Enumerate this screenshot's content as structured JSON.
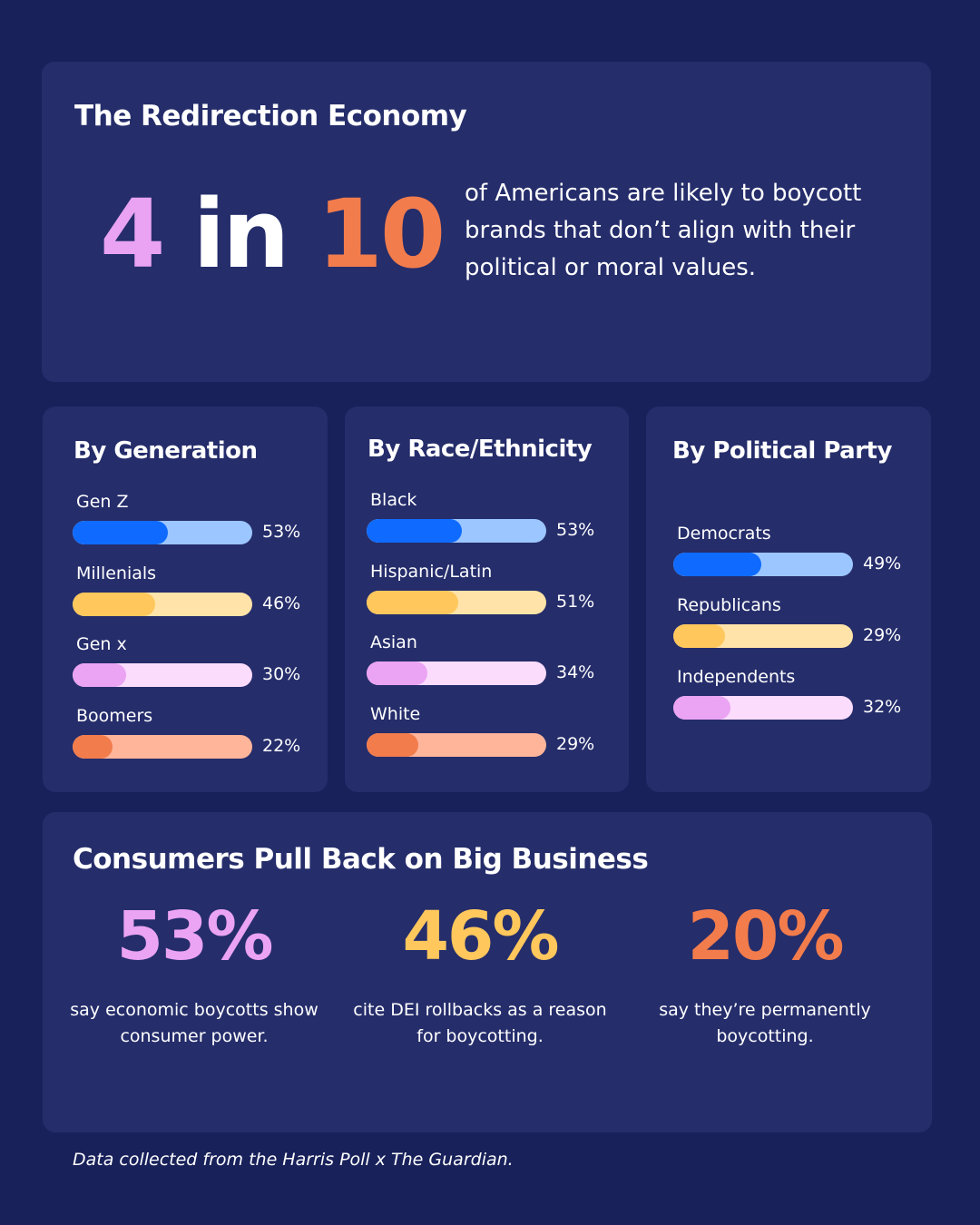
{
  "hero": {
    "title": "The Redirection Economy",
    "stat_part1": "4",
    "stat_part2": " in ",
    "stat_part3": "10",
    "text": "of Americans are likely to boycott brands that don’t align with their political or moral values."
  },
  "colors": {
    "background": "#18215a",
    "card": "#252d6b",
    "pink": "#e9a3f2",
    "orange": "#f27c4c",
    "yellow": "#ffc75c",
    "blue": "#0f6bff"
  },
  "chart_data": [
    {
      "type": "bar",
      "title": "By Generation",
      "categories": [
        "Gen Z",
        "Millenials",
        "Gen x",
        "Boomers"
      ],
      "values": [
        53,
        46,
        30,
        22
      ],
      "value_labels": [
        "53%",
        "46%",
        "30%",
        "22%"
      ],
      "xlim": [
        0,
        100
      ],
      "colors": [
        {
          "fill": "#0f6bff",
          "track": "#9cc6ff"
        },
        {
          "fill": "#ffc75c",
          "track": "#ffe3a8"
        },
        {
          "fill": "#eba3f3",
          "track": "#fbdcfc"
        },
        {
          "fill": "#f27c4c",
          "track": "#ffb59a"
        }
      ]
    },
    {
      "type": "bar",
      "title": "By Race/Ethnicity",
      "categories": [
        "Black",
        "Hispanic/Latin",
        "Asian",
        "White"
      ],
      "values": [
        53,
        51,
        34,
        29
      ],
      "value_labels": [
        "53%",
        "51%",
        "34%",
        "29%"
      ],
      "xlim": [
        0,
        100
      ],
      "colors": [
        {
          "fill": "#0f6bff",
          "track": "#9cc6ff"
        },
        {
          "fill": "#ffc75c",
          "track": "#ffe3a8"
        },
        {
          "fill": "#eba3f3",
          "track": "#fbdcfc"
        },
        {
          "fill": "#f27c4c",
          "track": "#ffb59a"
        }
      ]
    },
    {
      "type": "bar",
      "title": "By Political Party",
      "categories": [
        "Democrats",
        "Republicans",
        "Independents"
      ],
      "values": [
        49,
        29,
        32
      ],
      "value_labels": [
        "49%",
        "29%",
        "32%"
      ],
      "xlim": [
        0,
        100
      ],
      "colors": [
        {
          "fill": "#0f6bff",
          "track": "#9cc6ff"
        },
        {
          "fill": "#ffc75c",
          "track": "#ffe3a8"
        },
        {
          "fill": "#eba3f3",
          "track": "#fbdcfc"
        }
      ]
    }
  ],
  "business": {
    "title": "Consumers Pull Back on Big Business",
    "stats": [
      {
        "value": "53%",
        "text": "say economic boycotts show consumer power.",
        "color": "#eba3f3"
      },
      {
        "value": "46%",
        "text": "cite DEI rollbacks as a reason for boycotting.",
        "color": "#ffc75c"
      },
      {
        "value": "20%",
        "text": "say they’re permanently boycotting.",
        "color": "#f27c4c"
      }
    ]
  },
  "footnote": "Data collected from the Harris Poll x The Guardian."
}
